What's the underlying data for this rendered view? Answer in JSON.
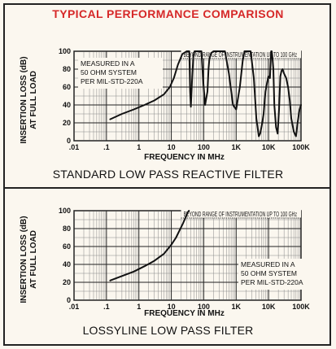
{
  "header": {
    "title": "TYPICAL PERFORMANCE COMPARISON"
  },
  "chart_data": [
    {
      "type": "line",
      "title": "STANDARD LOW PASS REACTIVE FILTER",
      "xlabel": "FREQUENCY IN MHz",
      "ylabel_line1": "INSERTION LOSS (dB)",
      "ylabel_line2": "AT FULL LOAD",
      "x_scale": "log",
      "xlim": [
        0.01,
        100000
      ],
      "ylim": [
        0,
        100
      ],
      "x_ticks": [
        0.01,
        0.1,
        1,
        10,
        100,
        1000,
        10000,
        100000
      ],
      "x_tick_labels": [
        ".01",
        ".1",
        "1",
        "10",
        "100",
        "1K",
        "10K",
        "100K"
      ],
      "y_ticks": [
        0,
        20,
        40,
        60,
        80,
        100
      ],
      "y_tick_labels": [
        "0",
        "20",
        "40",
        "60",
        "80",
        "100"
      ],
      "grid": true,
      "annotations": {
        "top_band": "BEYOND RANGE OF INSTRUMENTATION UP TO 100 GHz",
        "note_lines": [
          "MEASURED IN A",
          "50 OHM SYSTEM",
          "PER MIL-STD-220A"
        ]
      },
      "series": [
        {
          "x": [
            0.13,
            0.3,
            0.7,
            1.5,
            3,
            6,
            9,
            12,
            16,
            22,
            30,
            36,
            38,
            40,
            44,
            48,
            52,
            56,
            60,
            70,
            85,
            95,
            110,
            130,
            140,
            150,
            170,
            200,
            230,
            280,
            330,
            380,
            450,
            600,
            800,
            1000,
            1300,
            1600,
            1800,
            2000,
            2200,
            2400,
            2800,
            3500,
            4200,
            5000,
            5500,
            6000,
            6500,
            7000,
            8000,
            9000,
            10000,
            11000,
            12000,
            12500,
            13000,
            14000,
            15000,
            17000,
            19000,
            21000,
            23000,
            25000,
            27000,
            30000,
            35000,
            40000,
            45000,
            50000,
            60000,
            70000,
            80000,
            90000,
            100000
          ],
          "y": [
            24,
            30,
            35,
            40,
            45,
            52,
            60,
            70,
            85,
            97,
            100,
            100,
            55,
            38,
            70,
            95,
            100,
            100,
            100,
            100,
            100,
            70,
            40,
            55,
            80,
            92,
            98,
            100,
            100,
            100,
            100,
            100,
            100,
            75,
            40,
            35,
            60,
            90,
            100,
            100,
            100,
            100,
            100,
            70,
            25,
            5,
            8,
            15,
            22,
            30,
            55,
            65,
            72,
            70,
            100,
            100,
            95,
            80,
            40,
            15,
            8,
            35,
            72,
            78,
            80,
            75,
            70,
            60,
            45,
            25,
            10,
            5,
            22,
            35,
            40
          ]
        }
      ]
    },
    {
      "type": "line",
      "title": "LOSSYLINE LOW PASS FILTER",
      "xlabel": "FREQUENCY IN MHz",
      "ylabel_line1": "INSERTION LOSS (dB)",
      "ylabel_line2": "AT FULL LOAD",
      "x_scale": "log",
      "xlim": [
        0.01,
        100000
      ],
      "ylim": [
        0,
        100
      ],
      "x_ticks": [
        0.01,
        0.1,
        1,
        10,
        100,
        1000,
        10000,
        100000
      ],
      "x_tick_labels": [
        ".01",
        ".1",
        "1",
        "10",
        "100",
        "1K",
        "10K",
        "100K"
      ],
      "y_ticks": [
        0,
        20,
        40,
        60,
        80,
        100
      ],
      "y_tick_labels": [
        "0",
        "20",
        "40",
        "60",
        "80",
        "100"
      ],
      "grid": true,
      "annotations": {
        "top_band": "BEYOND RANGE OF INSTRUMENTATION UP TO 100 GHz",
        "note_lines": [
          "MEASURED IN A",
          "50 OHM SYSTEM",
          "PER MIL-STD-220A"
        ]
      },
      "series": [
        {
          "x": [
            0.13,
            0.3,
            0.7,
            1.5,
            3,
            6,
            10,
            14,
            18,
            23,
            28,
            32,
            35
          ],
          "y": [
            22,
            27,
            32,
            38,
            44,
            52,
            62,
            70,
            78,
            86,
            93,
            98,
            100
          ]
        }
      ]
    }
  ]
}
